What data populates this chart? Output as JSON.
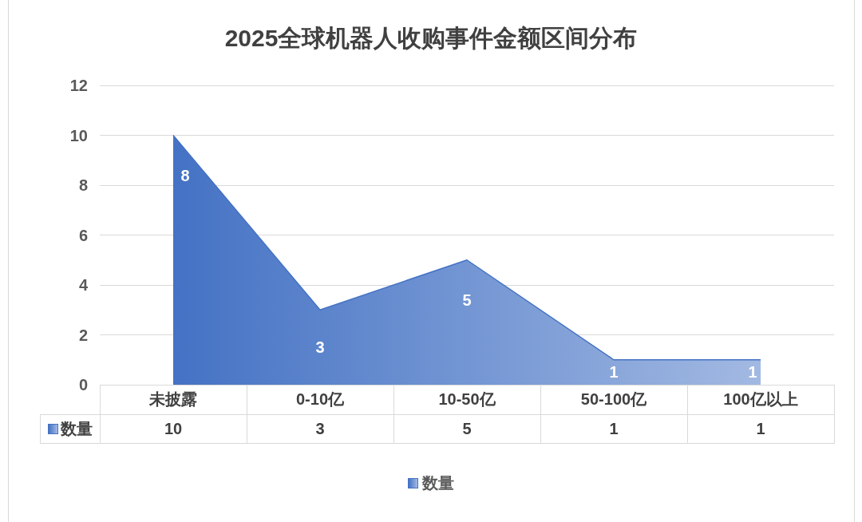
{
  "chart_data": {
    "type": "area",
    "title": "2025全球机器人收购事件金额区间分布",
    "categories": [
      "未披露",
      "0-10亿",
      "10-50亿",
      "50-100亿",
      "100亿以上"
    ],
    "series": [
      {
        "name": "数量",
        "color": "#4472c4",
        "values": [
          10,
          3,
          5,
          1,
          1
        ]
      }
    ],
    "annotations": [
      {
        "text": "8",
        "x": "未披露",
        "y": 10
      },
      {
        "text": "3",
        "x": "0-10亿",
        "y": 3
      },
      {
        "text": "5",
        "x": "10-50亿",
        "y": 5
      },
      {
        "text": "1",
        "x": "50-100亿",
        "y": 1
      },
      {
        "text": "1",
        "x": "100亿以上",
        "y": 1
      }
    ],
    "ylim": [
      0,
      12
    ],
    "yticks": [
      0,
      2,
      4,
      6,
      8,
      10,
      12
    ],
    "grid": "y",
    "legend": "bottom",
    "data_labels": true
  }
}
